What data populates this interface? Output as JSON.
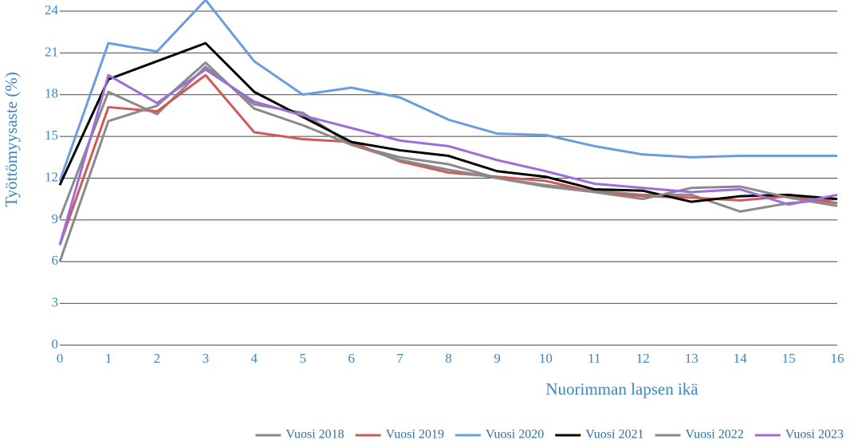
{
  "chart_data": {
    "type": "line",
    "xlabel": "Nuorimman lapsen ikä",
    "ylabel": "Työttömyysaste (%)",
    "x": [
      0,
      1,
      2,
      3,
      4,
      5,
      6,
      7,
      8,
      9,
      10,
      11,
      12,
      13,
      14,
      15,
      16
    ],
    "xlim": [
      0,
      16
    ],
    "xticks": [
      0,
      1,
      2,
      3,
      4,
      5,
      6,
      7,
      8,
      9,
      10,
      11,
      12,
      13,
      14,
      15,
      16
    ],
    "ylim": [
      0,
      24.8
    ],
    "yticks": [
      0,
      3,
      6,
      9,
      12,
      15,
      18,
      21,
      24
    ],
    "grid": true,
    "legend": "bottom-right",
    "series": [
      {
        "name": "Vuosi 2018",
        "color": "#8a8a8a",
        "values": [
          9.1,
          18.2,
          16.6,
          20.0,
          17.3,
          16.7,
          14.4,
          13.5,
          13.0,
          12.0,
          11.5,
          11.1,
          10.8,
          10.8,
          9.6,
          10.2,
          10.5
        ]
      },
      {
        "name": "Vuosi 2019",
        "color": "#d05a5a",
        "values": [
          7.2,
          17.1,
          16.8,
          19.4,
          15.3,
          14.8,
          14.6,
          13.2,
          12.4,
          12.1,
          11.8,
          11.0,
          10.7,
          10.6,
          10.4,
          10.7,
          10.2
        ]
      },
      {
        "name": "Vuosi 2020",
        "color": "#6b9be0",
        "values": [
          11.8,
          21.7,
          21.1,
          24.8,
          20.4,
          18.0,
          18.5,
          17.8,
          16.2,
          15.2,
          15.1,
          14.3,
          13.7,
          13.5,
          13.6,
          13.6,
          13.6
        ]
      },
      {
        "name": "Vuosi 2021",
        "color": "#000000",
        "values": [
          11.5,
          19.1,
          20.4,
          21.7,
          18.2,
          16.4,
          14.6,
          14.0,
          13.6,
          12.5,
          12.1,
          11.2,
          11.1,
          10.3,
          10.7,
          10.8,
          10.5
        ]
      },
      {
        "name": "Vuosi 2022",
        "color": "#8a8a8a",
        "values": [
          6.0,
          16.1,
          17.2,
          20.3,
          17.0,
          15.8,
          14.4,
          13.3,
          12.6,
          12.0,
          11.4,
          11.0,
          10.5,
          11.3,
          11.4,
          10.6,
          10.0
        ]
      },
      {
        "name": "Vuosi 2023",
        "color": "#9b6fd6",
        "values": [
          7.2,
          19.4,
          17.4,
          19.8,
          17.5,
          16.5,
          15.6,
          14.7,
          14.3,
          13.3,
          12.5,
          11.6,
          11.3,
          11.0,
          11.2,
          10.1,
          10.8
        ]
      }
    ]
  }
}
